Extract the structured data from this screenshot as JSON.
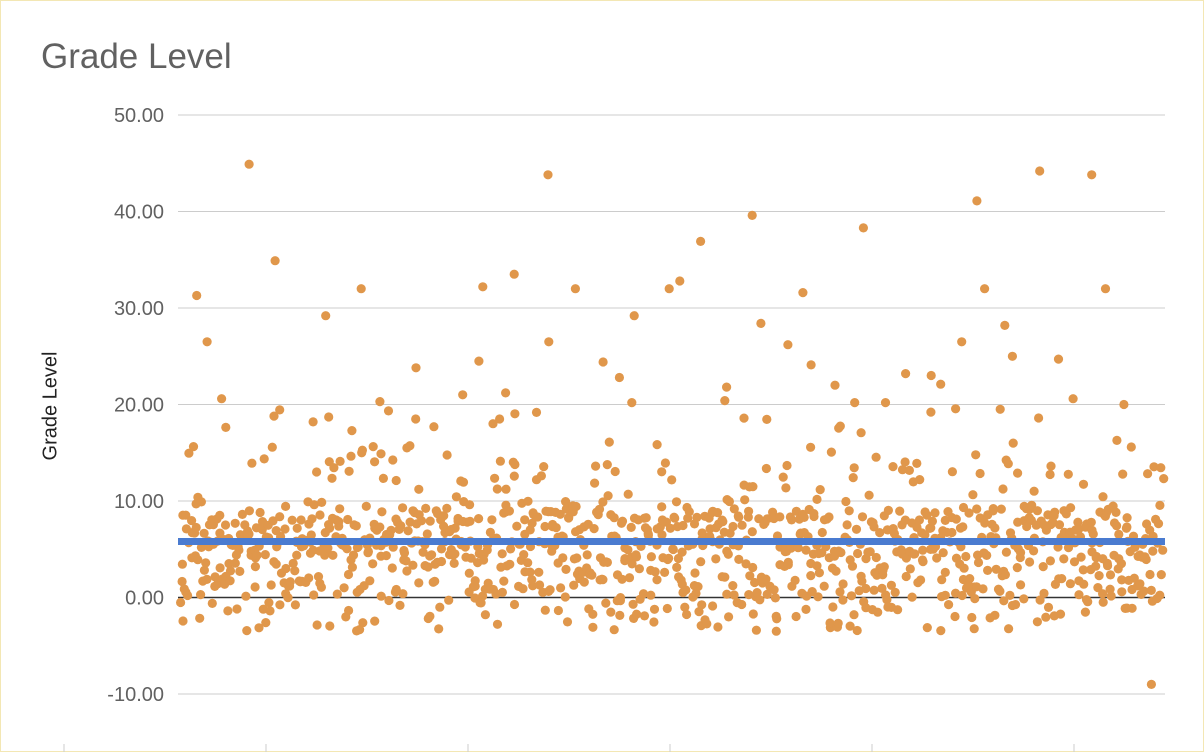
{
  "chart_data": {
    "type": "scatter",
    "title": "Grade Level",
    "xlabel": "",
    "ylabel": "Grade Level",
    "ylim": [
      -10,
      50
    ],
    "y_ticks": [
      "50.00",
      "40.00",
      "30.00",
      "20.00",
      "10.00",
      "0.00",
      "-10.00"
    ],
    "y_tick_values": [
      50,
      40,
      30,
      20,
      10,
      0,
      -10
    ],
    "x_ticks": [
      "",
      "",
      "",
      "",
      "",
      ""
    ],
    "grid": true,
    "legend": "none",
    "point_color": "#e0974b",
    "trendline": {
      "value": 5.8,
      "color": "#4a7bd0"
    },
    "series": [
      {
        "points_count": 1100,
        "outlier_values": [
          31.3,
          26.5,
          20.6,
          44.9,
          34.9,
          18.8,
          18.2,
          29.2,
          18.7,
          17.3,
          32.0,
          20.3,
          23.8,
          18.5,
          17.7,
          21.0,
          32.2,
          24.5,
          21.2,
          33.5,
          43.8,
          26.5,
          32.0,
          24.4,
          22.8,
          20.2,
          29.2,
          32.0,
          32.8,
          36.9,
          20.4,
          21.8,
          39.6,
          28.4,
          26.2,
          31.6,
          24.1,
          22.0,
          20.2,
          38.3,
          20.2,
          23.2,
          23.0,
          22.1,
          26.5,
          41.1,
          32.0,
          28.2,
          25.0,
          44.2,
          24.7,
          20.6,
          43.8,
          32.0,
          20.0,
          -9.0
        ]
      }
    ]
  }
}
